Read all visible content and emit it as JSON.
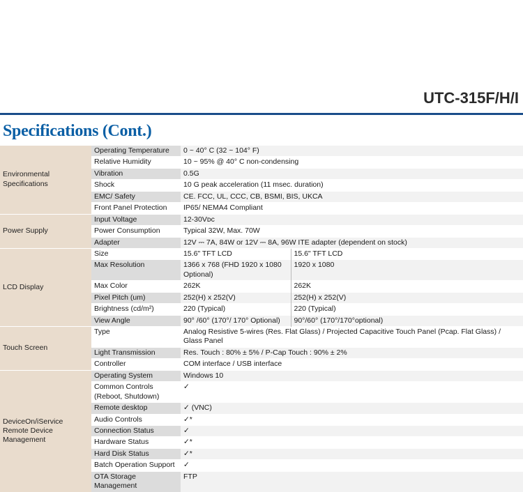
{
  "model_title": "UTC-315F/H/I",
  "section_title": "Specifications (Cont.)",
  "colors": {
    "blue_rule": "#1a4d8a",
    "section_title": "#0b5fa5",
    "category_bg": "#e9dccd",
    "param_grey": "#dcdcdc",
    "param_white": "#ffffff",
    "val_grey": "#f2f2f2",
    "val_white": "#ffffff"
  },
  "groups": [
    {
      "category": "Environmental Specifications",
      "rows": [
        {
          "param": "Operating Temperature",
          "value": "0 ~ 40° C (32 ~ 104° F)"
        },
        {
          "param": "Relative Humidity",
          "value": "10 ~ 95% @ 40° C non-condensing"
        },
        {
          "param": "Vibration",
          "value": "0.5G"
        },
        {
          "param": "Shock",
          "value": "10 G peak acceleration (11 msec. duration)"
        },
        {
          "param": "EMC/ Safety",
          "value": "CE. FCC, UL, CCC, CB, BSMI, BIS, UKCA"
        },
        {
          "param": "Front Panel Protection",
          "value": "IP65/ NEMA4 Compliant"
        }
      ]
    },
    {
      "category": "Power Supply",
      "rows": [
        {
          "param": "Input Voltage",
          "value": "12-30Vᴅᴄ"
        },
        {
          "param": "Power Consumption",
          "value": "Typical 32W, Max. 70W"
        },
        {
          "param": "Adapter",
          "value": "12V ⎓ 7A, 84W or 12V ⎓ 8A, 96W ITE adapter (dependent on stock)"
        }
      ]
    },
    {
      "category": "LCD Display",
      "two_col": true,
      "rows": [
        {
          "param": "Size",
          "v1": "15.6\" TFT LCD",
          "v2": "15.6\" TFT LCD"
        },
        {
          "param": "Max Resolution",
          "v1": "1366 x 768 (FHD 1920 x 1080 Optional)",
          "v2": "1920 x 1080"
        },
        {
          "param": "Max Color",
          "v1": "262K",
          "v2": "262K"
        },
        {
          "param": "Pixel Pitch (um)",
          "v1": "252(H) x 252(V)",
          "v2": "252(H) x 252(V)"
        },
        {
          "param": "Brightness (cd/m²)",
          "v1": "220 (Typical)",
          "v2": "220 (Typical)"
        },
        {
          "param": "View Angle",
          "v1": "90° /60° (170°/ 170° Optional)",
          "v2": "90°/60° (170°/170°optional)"
        }
      ]
    },
    {
      "category": "Touch Screen",
      "rows": [
        {
          "param": "Type",
          "value": "Analog Resistive 5-wires (Res. Flat Glass) / Projected Capacitive Touch Panel (Pcap. Flat Glass) / Glass Panel"
        },
        {
          "param": "Light Transmission",
          "value": "Res. Touch : 80% ± 5% / P-Cap Touch : 90% ± 2%"
        },
        {
          "param": "Controller",
          "value": "COM interface / USB interface"
        }
      ]
    },
    {
      "category": "DeviceOn/iService\nRemote Device Management",
      "rows": [
        {
          "param": "Operating System",
          "value": "Windows 10"
        },
        {
          "param": "Common Controls\n(Reboot, Shutdown)",
          "value": "✓"
        },
        {
          "param": "Remote desktop",
          "value": "✓ (VNC)"
        },
        {
          "param": "Audio Controls",
          "value": "✓*"
        },
        {
          "param": "Connection Status",
          "value": "✓"
        },
        {
          "param": "Hardware Status",
          "value": "✓*"
        },
        {
          "param": "Hard Disk Status",
          "value": "✓*"
        },
        {
          "param": "Batch Operation Support",
          "value": "✓"
        },
        {
          "param": "OTA Storage Management",
          "value": "FTP"
        }
      ]
    }
  ]
}
